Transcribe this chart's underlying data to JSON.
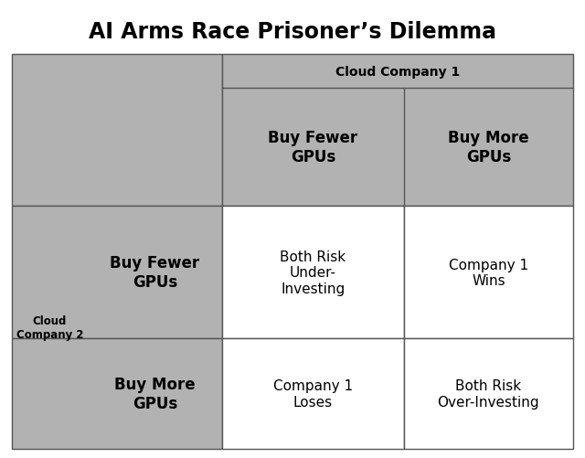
{
  "title": "AI Arms Race Prisoner’s Dilemma",
  "title_fontsize": 17,
  "title_fontweight": "bold",
  "col1_header": "Cloud Company 1",
  "col1_header_fontsize": 10,
  "col1_header_fontweight": "bold",
  "row_header": "Cloud\nCompany 2",
  "row_header_fontsize": 8.5,
  "row_header_fontweight": "bold",
  "col_labels": [
    "Buy Fewer\nGPUs",
    "Buy More\nGPUs"
  ],
  "col_labels_fontsize": 12,
  "col_labels_fontweight": "bold",
  "row_labels": [
    "Buy Fewer\nGPUs",
    "Buy More\nGPUs"
  ],
  "row_labels_fontsize": 12,
  "row_labels_fontweight": "bold",
  "cell_texts": [
    [
      "Both Risk\nUnder-\nInvesting",
      "Company 1\nWins"
    ],
    [
      "Company 1\nLoses",
      "Both Risk\nOver-Investing"
    ]
  ],
  "cell_fontsize": 11,
  "header_bg_color": "#b2b2b2",
  "cell_bg_color": "#ffffff",
  "border_color": "#555555",
  "background_color": "#ffffff",
  "fig_width": 6.4,
  "fig_height": 5.02
}
